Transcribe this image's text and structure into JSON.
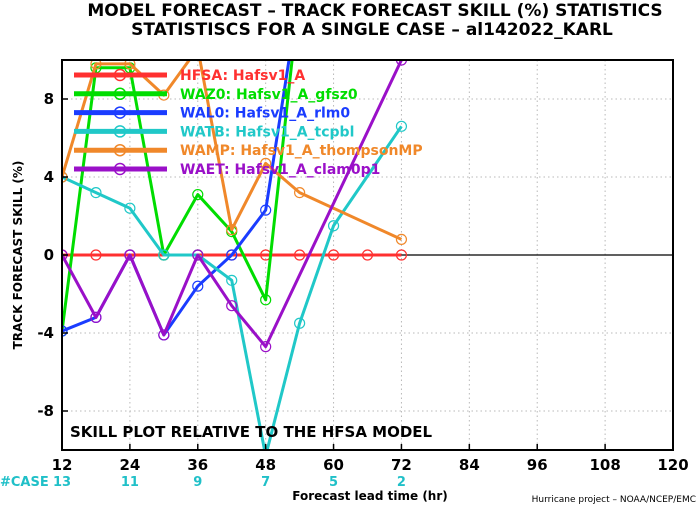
{
  "header": {
    "title_line1": "MODEL FORECAST – TRACK FORECAST SKILL (%) STATISTICS",
    "title_line2": "STATISTISCS FOR A SINGLE CASE – al142022_KARL"
  },
  "footer": {
    "case_label": "#CASE",
    "credit": "Hurricane project – NOAA/NCEP/EMC"
  },
  "chart_data": {
    "type": "line",
    "title": "MODEL FORECAST – TRACK FORECAST SKILL (%) STATISTICS",
    "subtitle": "STATISTISCS FOR A SINGLE CASE – al142022_KARL",
    "xlabel": "Forecast lead time (hr)",
    "ylabel": "TRACK FORECAST SKILL (%)",
    "xlim": [
      12,
      120
    ],
    "ylim": [
      -10,
      10
    ],
    "xticks": [
      12,
      24,
      36,
      48,
      60,
      72,
      84,
      96,
      108,
      120
    ],
    "yticks": [
      -8,
      -4,
      0,
      4,
      8
    ],
    "grid": true,
    "legend_position": "top-left",
    "annotation": "SKILL PLOT RELATIVE TO THE HFSA MODEL",
    "case_counts": [
      {
        "x": 12,
        "n": "13"
      },
      {
        "x": 24,
        "n": "11"
      },
      {
        "x": 36,
        "n": "9"
      },
      {
        "x": 48,
        "n": "7"
      },
      {
        "x": 60,
        "n": "5"
      },
      {
        "x": 72,
        "n": "2"
      }
    ],
    "x": [
      12,
      18,
      24,
      30,
      36,
      42,
      48,
      54,
      60,
      66,
      72
    ],
    "series": [
      {
        "name": "HFSA: Hafsv1_A",
        "color": "#ff3030",
        "values": [
          0,
          0,
          0,
          0,
          0,
          0,
          0,
          0,
          0,
          0,
          0
        ]
      },
      {
        "name": "WAZ0: Hafsv1_A_gfsz0",
        "color": "#00dd00",
        "values": [
          -3.9,
          9.6,
          9.6,
          0.0,
          3.1,
          1.2,
          -2.3,
          13.5,
          null,
          null,
          null
        ]
      },
      {
        "name": "WAL0: Hafsv1_A_rlm0",
        "color": "#1a3cff",
        "values": [
          -3.9,
          -3.2,
          0.0,
          -4.1,
          -1.6,
          0.0,
          2.3,
          13.5,
          null,
          null,
          null
        ]
      },
      {
        "name": "WATB: Hafsv1_A_tcpbl",
        "color": "#20c8c8",
        "values": [
          4.0,
          3.2,
          2.4,
          0.0,
          0.0,
          -1.3,
          -10.3,
          -3.5,
          1.5,
          null,
          6.6
        ]
      },
      {
        "name": "WAMP: Hafsv1_A_thompsonMP",
        "color": "#f0882a",
        "values": [
          4.0,
          9.8,
          9.8,
          8.2,
          10.6,
          1.3,
          4.7,
          3.2,
          null,
          null,
          0.8
        ]
      },
      {
        "name": "WAET: Hafsv1_A_clam0p1",
        "color": "#9a10c8",
        "values": [
          0.0,
          -3.2,
          0.0,
          -4.1,
          0.0,
          -2.6,
          -4.7,
          null,
          null,
          null,
          10.0
        ]
      }
    ]
  }
}
